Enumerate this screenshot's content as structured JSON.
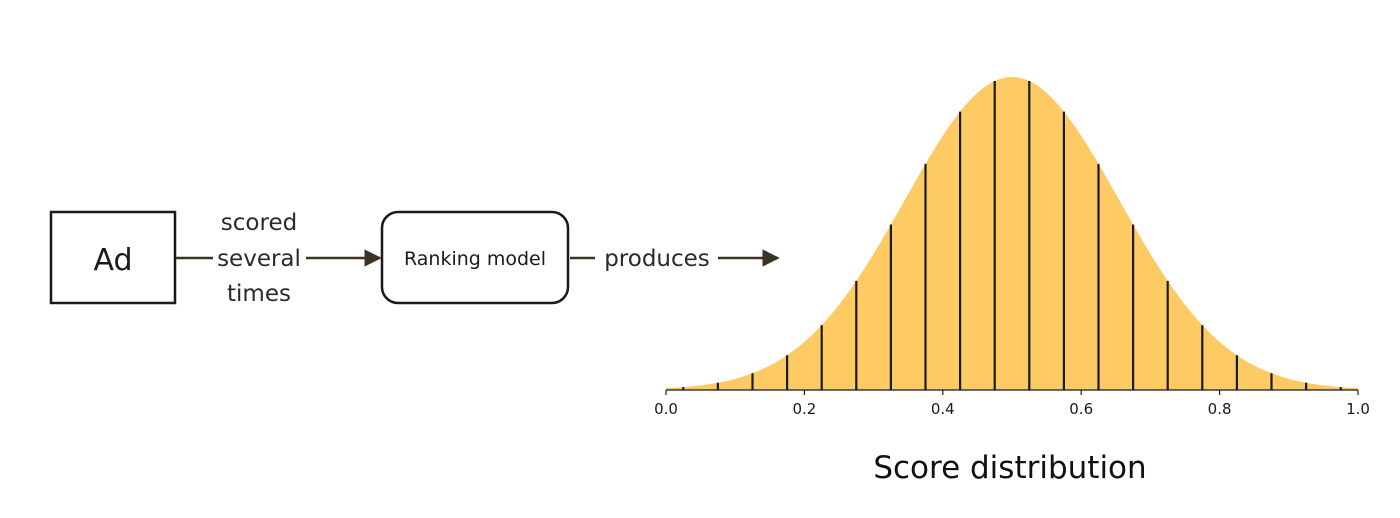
{
  "nodes": {
    "ad": {
      "label": "Ad"
    },
    "model": {
      "label": "Ranking model"
    }
  },
  "edges": {
    "scored": {
      "lines": [
        "scored",
        "several",
        "times"
      ]
    },
    "produces": {
      "label": "produces"
    }
  },
  "colors": {
    "fill": "#fdca64",
    "stroke": "#1a1a1a",
    "arrow": "#3b3324"
  },
  "chart_data": {
    "type": "area",
    "xlim": [
      0.0,
      1.0
    ],
    "distribution": {
      "family": "normal",
      "mean": 0.5,
      "std": 0.155
    },
    "x_ticks": [
      0.0,
      0.2,
      0.4,
      0.6,
      0.8,
      1.0
    ],
    "x_tick_labels": [
      "0.0",
      "0.2",
      "0.4",
      "0.6",
      "0.8",
      "1.0"
    ],
    "bins": [
      0.025,
      0.075,
      0.125,
      0.175,
      0.225,
      0.275,
      0.325,
      0.375,
      0.425,
      0.475,
      0.525,
      0.575,
      0.625,
      0.675,
      0.725,
      0.775,
      0.825,
      0.875,
      0.925,
      0.975
    ],
    "caption": "Score distribution",
    "grid": false
  }
}
